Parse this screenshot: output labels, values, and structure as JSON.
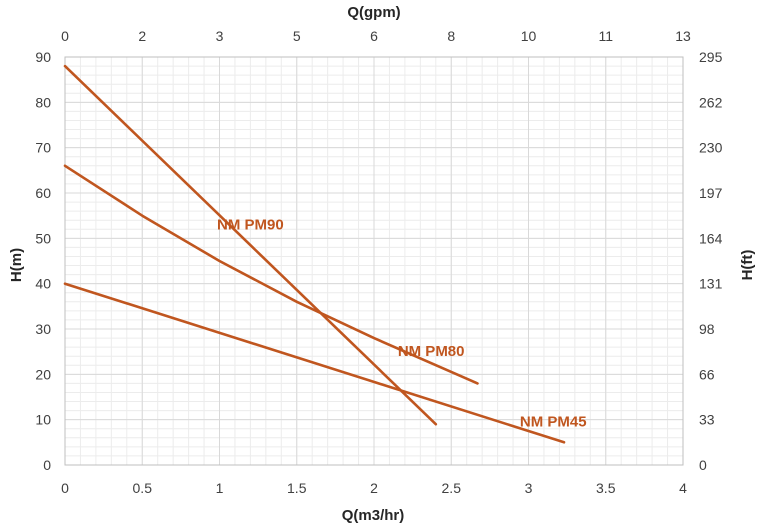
{
  "chart_data": {
    "type": "line",
    "title": "",
    "xlabel": "Q(m3/hr)",
    "ylabel": "H(m)",
    "x2label": "Q(gpm)",
    "y2label": "H(ft)",
    "xlim": [
      0,
      4
    ],
    "ylim": [
      0,
      90
    ],
    "x_ticks": [
      "0",
      "0.5",
      "1",
      "1.5",
      "2",
      "2.5",
      "3",
      "3.5",
      "4"
    ],
    "y_ticks": [
      "0",
      "10",
      "20",
      "30",
      "40",
      "50",
      "60",
      "70",
      "80",
      "90"
    ],
    "x2_ticks": [
      "0",
      "2",
      "3",
      "5",
      "6",
      "8",
      "10",
      "11",
      "13"
    ],
    "y2_ticks": [
      "0",
      "33",
      "66",
      "98",
      "131",
      "164",
      "197",
      "230",
      "262",
      "295"
    ],
    "grid": true,
    "legend": "none",
    "series_color": "#c0561f",
    "series": [
      {
        "name": "NM PM90",
        "x": [
          0,
          2.4
        ],
        "y": [
          88,
          9
        ],
        "label_x": 1.2,
        "label_y": 52
      },
      {
        "name": "NM PM80",
        "x": [
          0,
          0.5,
          1,
          1.5,
          2,
          2.67
        ],
        "y": [
          66,
          55,
          45,
          36,
          28,
          18
        ],
        "label_x": 2.37,
        "label_y": 24
      },
      {
        "name": "NM PM45",
        "x": [
          0,
          3.23
        ],
        "y": [
          40,
          5
        ],
        "label_x": 3.16,
        "label_y": 8.5
      }
    ]
  }
}
